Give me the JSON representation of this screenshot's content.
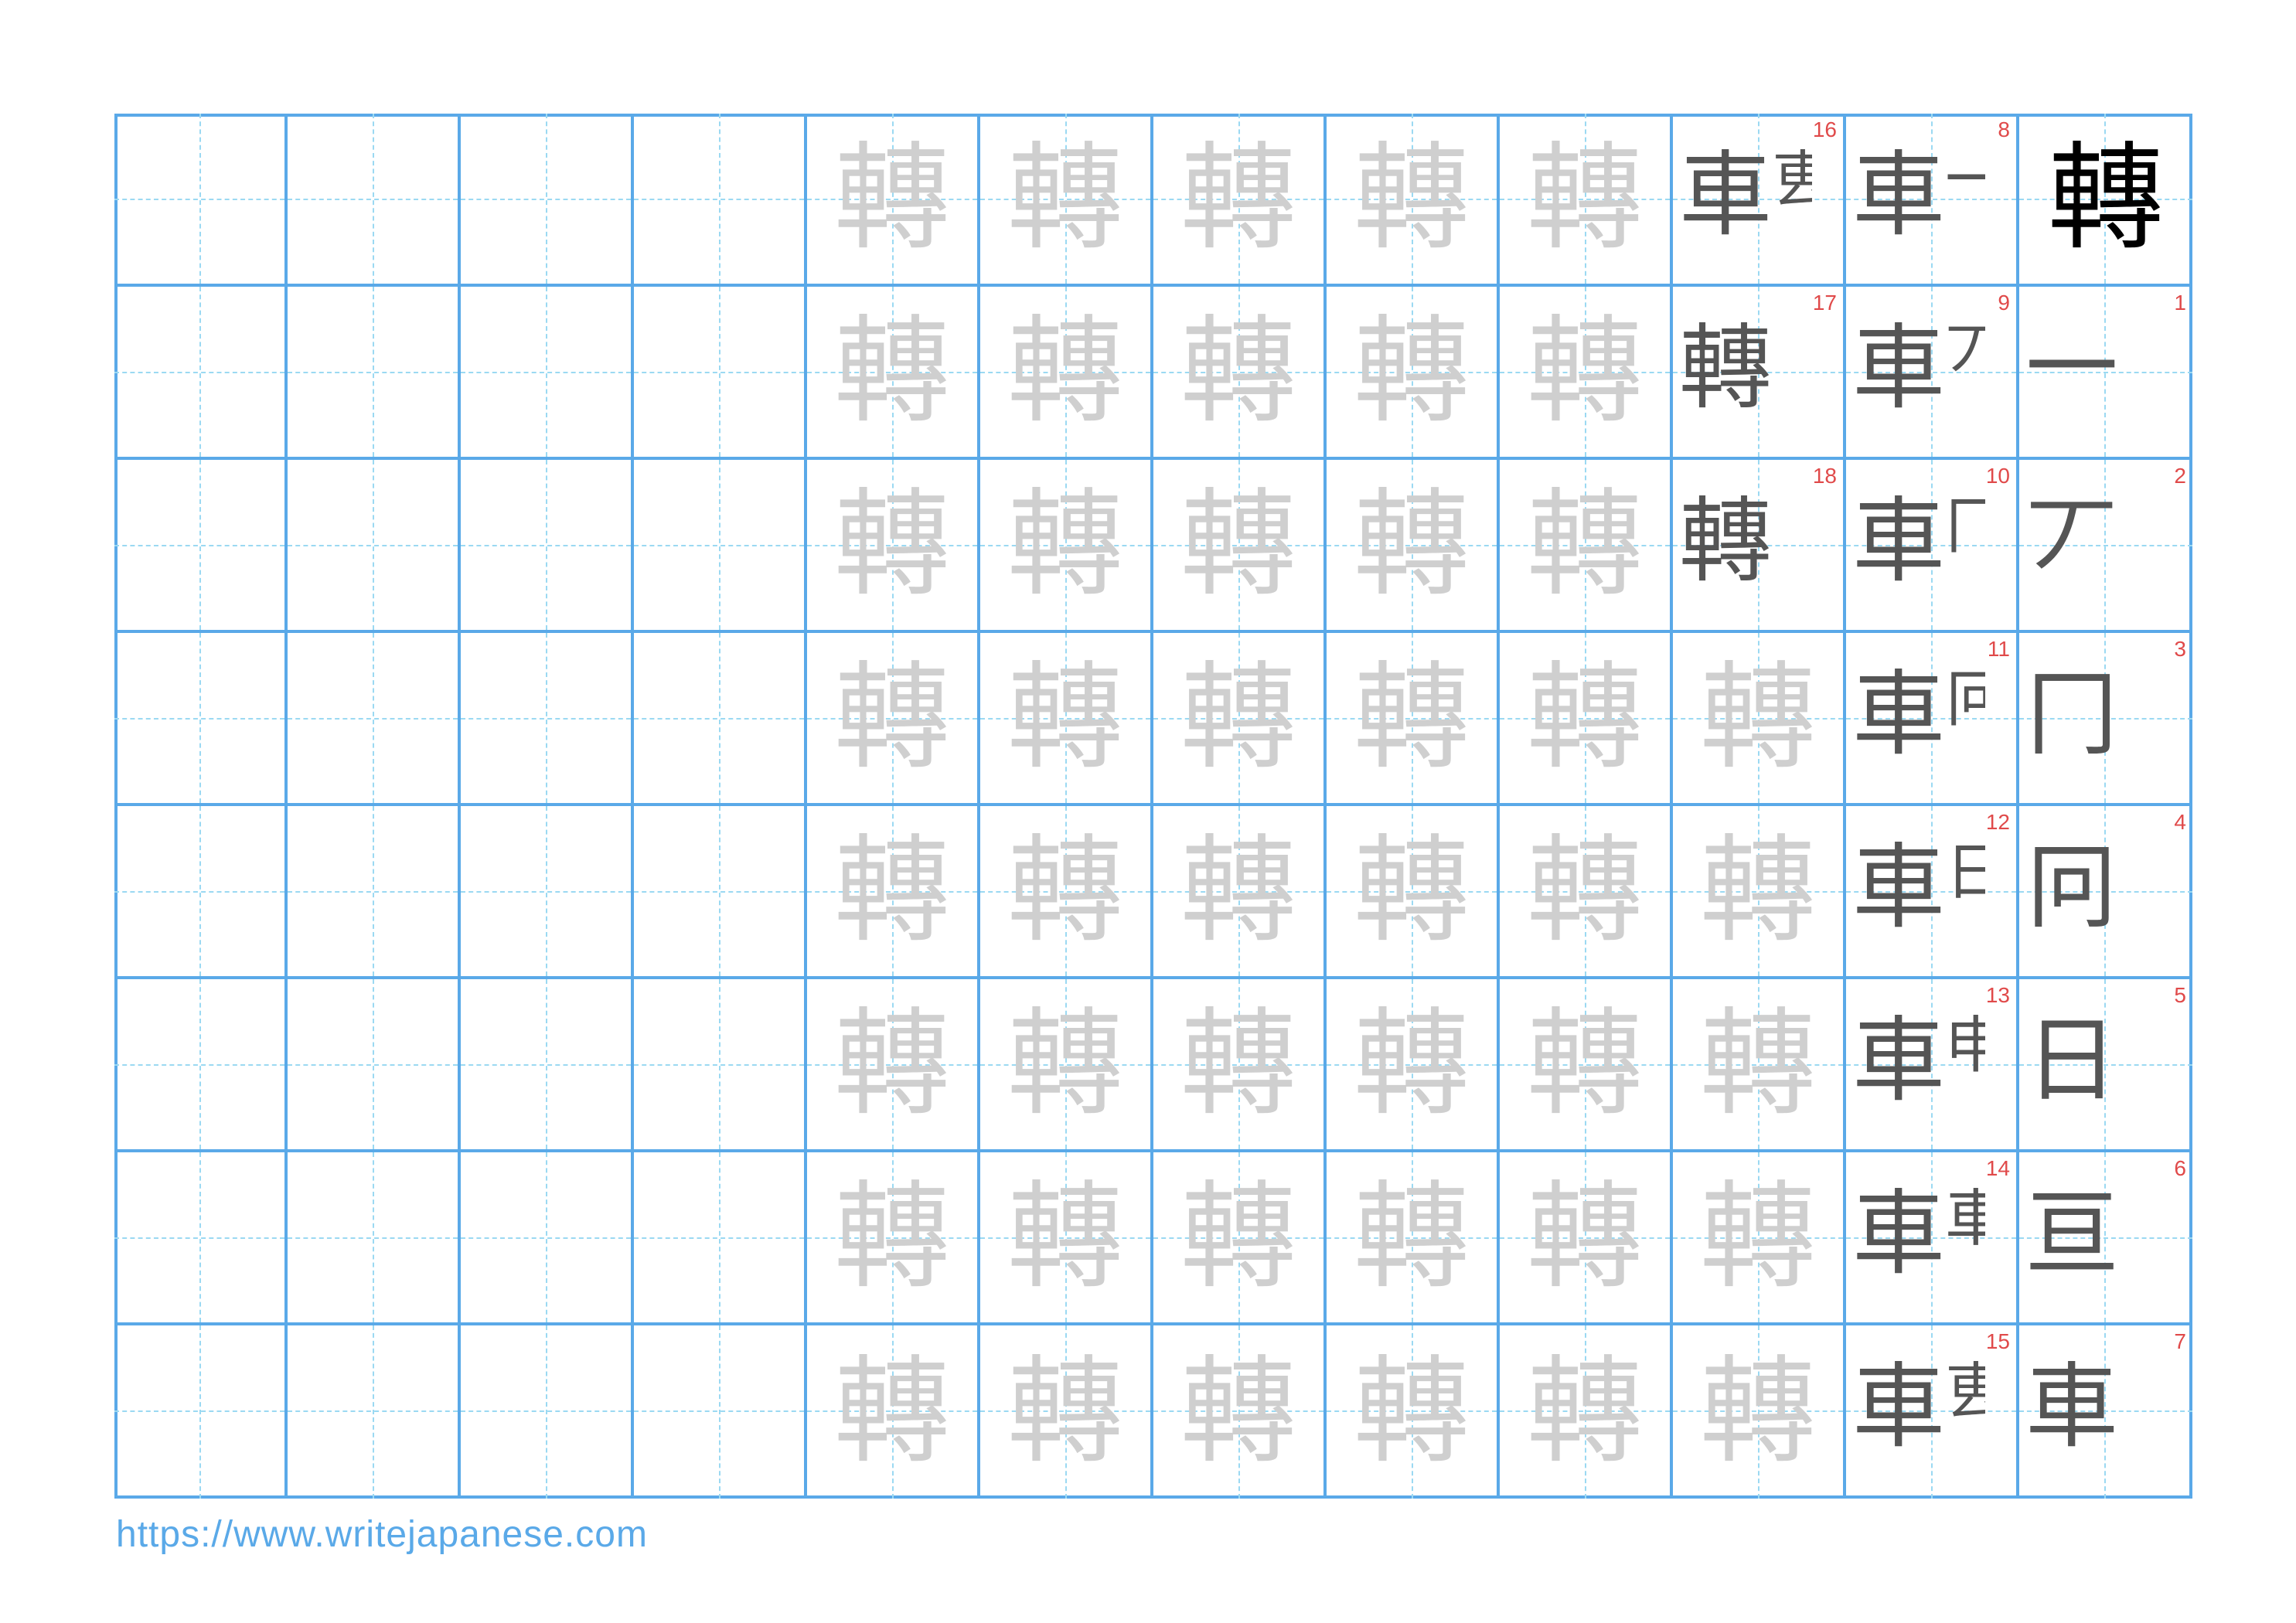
{
  "character": "轉",
  "trace_glyph": "轉",
  "grid": {
    "columns": 12,
    "rows": 8,
    "trace_columns": [
      4,
      5,
      6,
      7,
      8,
      9
    ]
  },
  "strokes": [
    {
      "n": 1,
      "base": "",
      "frag": "一"
    },
    {
      "n": 2,
      "base": "",
      "frag": "丆"
    },
    {
      "n": 3,
      "base": "",
      "frag": "冂"
    },
    {
      "n": 4,
      "base": "",
      "frag": "冋"
    },
    {
      "n": 5,
      "base": "",
      "frag": "日"
    },
    {
      "n": 6,
      "base": "",
      "frag": "亘"
    },
    {
      "n": 7,
      "base": "車",
      "frag": ""
    },
    {
      "n": 8,
      "base": "車",
      "frag": "一"
    },
    {
      "n": 9,
      "base": "車",
      "frag": "丆"
    },
    {
      "n": 10,
      "base": "車",
      "frag": "冂"
    },
    {
      "n": 11,
      "base": "車",
      "frag": "冋"
    },
    {
      "n": 12,
      "base": "車",
      "frag": "日"
    },
    {
      "n": 13,
      "base": "車",
      "frag": "申"
    },
    {
      "n": 14,
      "base": "車",
      "frag": "車"
    },
    {
      "n": 15,
      "base": "車",
      "frag": "叀"
    },
    {
      "n": 16,
      "base": "車",
      "frag": "叀"
    },
    {
      "n": 17,
      "base": "轉",
      "frag": ""
    },
    {
      "n": 18,
      "base": "轉",
      "frag": ""
    }
  ],
  "colors": {
    "grid": "#5aa9e8",
    "guide": "#9bd9f2",
    "stroke_number": "#e04a4a",
    "trace": "#cfcfcf"
  },
  "footer": {
    "url": "https://www.writejapanese.com"
  }
}
